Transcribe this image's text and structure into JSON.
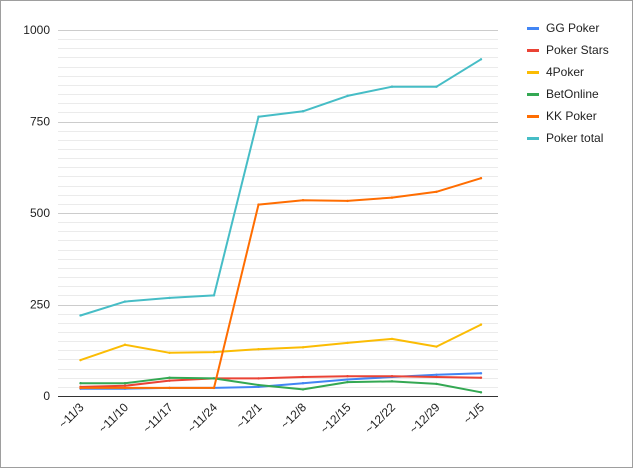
{
  "chart_data": {
    "type": "line",
    "title": "",
    "xlabel": "",
    "ylabel": "",
    "ylim": [
      0,
      1000
    ],
    "y_ticks": [
      "0",
      "250",
      "500",
      "750",
      "1000"
    ],
    "grid": "horizontal minor lines",
    "legend_position": "right",
    "categories": [
      "~11/3",
      "~11/10",
      "~11/17",
      "~11/24",
      "~12/1",
      "~12/8",
      "~12/15",
      "~12/22",
      "~12/29",
      "~1/5"
    ],
    "series": [
      {
        "name": "GG Poker",
        "color": "#4285f4",
        "values": [
          20,
          20,
          22,
          22,
          25,
          35,
          45,
          52,
          58,
          62
        ]
      },
      {
        "name": "Poker Stars",
        "color": "#ea4335",
        "values": [
          25,
          28,
          42,
          48,
          48,
          52,
          54,
          54,
          52,
          50
        ]
      },
      {
        "name": "4Poker",
        "color": "#fbbc04",
        "values": [
          98,
          140,
          118,
          120,
          128,
          133,
          145,
          156,
          135,
          195
        ]
      },
      {
        "name": "BetOnline",
        "color": "#34a853",
        "values": [
          35,
          35,
          50,
          48,
          30,
          18,
          38,
          40,
          33,
          10
        ]
      },
      {
        "name": "KK Poker",
        "color": "#ff6d01",
        "values": [
          22,
          22,
          22,
          22,
          523,
          535,
          533,
          542,
          558,
          595
        ]
      },
      {
        "name": "Poker total",
        "color": "#46bdc6",
        "values": [
          220,
          258,
          268,
          275,
          763,
          778,
          820,
          845,
          845,
          920
        ]
      }
    ]
  }
}
